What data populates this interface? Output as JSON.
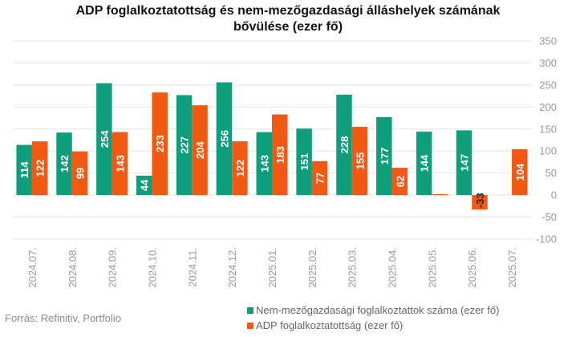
{
  "title_line1": "ADP foglalkoztatottság és nem-mezőgazdasági álláshelyek számának",
  "title_line2": "bővülése (ezer fő)",
  "source": "Forrás: Refinitiv, Portfolio",
  "chart_data": {
    "type": "bar",
    "categories": [
      "2024.07.",
      "2024.08.",
      "2024.09.",
      "2024.10.",
      "2024.11.",
      "2024.12.",
      "2025.01.",
      "2025.02.",
      "2025.03.",
      "2025.04.",
      "2025.05.",
      "2025.06.",
      "2025.07."
    ],
    "series": [
      {
        "name": "Nem-mezőgazdasági foglalkoztattok száma (ezer fő)",
        "color": "#0f9e7c",
        "values": [
          114,
          142,
          254,
          44,
          227,
          256,
          143,
          151,
          228,
          177,
          144,
          147,
          null
        ]
      },
      {
        "name": "ADP foglalkoztatottság (ezer fő)",
        "color": "#f25a14",
        "values": [
          122,
          99,
          143,
          233,
          204,
          122,
          183,
          77,
          155,
          62,
          2,
          -33,
          104
        ]
      }
    ],
    "ylim": [
      -100,
      350
    ],
    "yticks": [
      -100,
      -50,
      0,
      50,
      100,
      150,
      200,
      250,
      300,
      350
    ],
    "grid": true,
    "legend_position": "bottom"
  }
}
